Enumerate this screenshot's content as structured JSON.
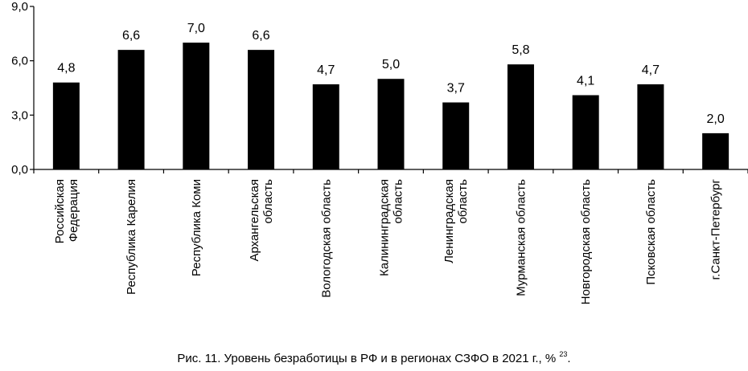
{
  "chart_data": {
    "type": "bar",
    "categories": [
      [
        "Российская",
        "Федерация"
      ],
      [
        "Республика Карелия"
      ],
      [
        "Республика Коми"
      ],
      [
        "Архангельская",
        "область"
      ],
      [
        "Вологодская область"
      ],
      [
        "Калининградская",
        "область"
      ],
      [
        "Ленинградская",
        "область"
      ],
      [
        "Мурманская область"
      ],
      [
        "Новгородская область"
      ],
      [
        "Псковская область"
      ],
      [
        "г.Санкт-Петербург"
      ]
    ],
    "values": [
      4.8,
      6.6,
      7.0,
      6.6,
      4.7,
      5.0,
      3.7,
      5.8,
      4.1,
      4.7,
      2.0
    ],
    "value_labels": [
      "4,8",
      "6,6",
      "7,0",
      "6,6",
      "4,7",
      "5,0",
      "3,7",
      "5,8",
      "4,1",
      "4,7",
      "2,0"
    ],
    "ylim": [
      0,
      9
    ],
    "yticks": [
      0,
      3,
      6,
      9
    ],
    "ytick_labels": [
      "0,0",
      "3,0",
      "6,0",
      "9,0"
    ],
    "bar_color": "#000000",
    "grid": false,
    "legend": "none"
  },
  "caption": {
    "text": "Рис. 11. Уровень безработицы в РФ и в регионах СЗФО в 2021 г., %",
    "footnote": "23",
    "tail": "."
  }
}
